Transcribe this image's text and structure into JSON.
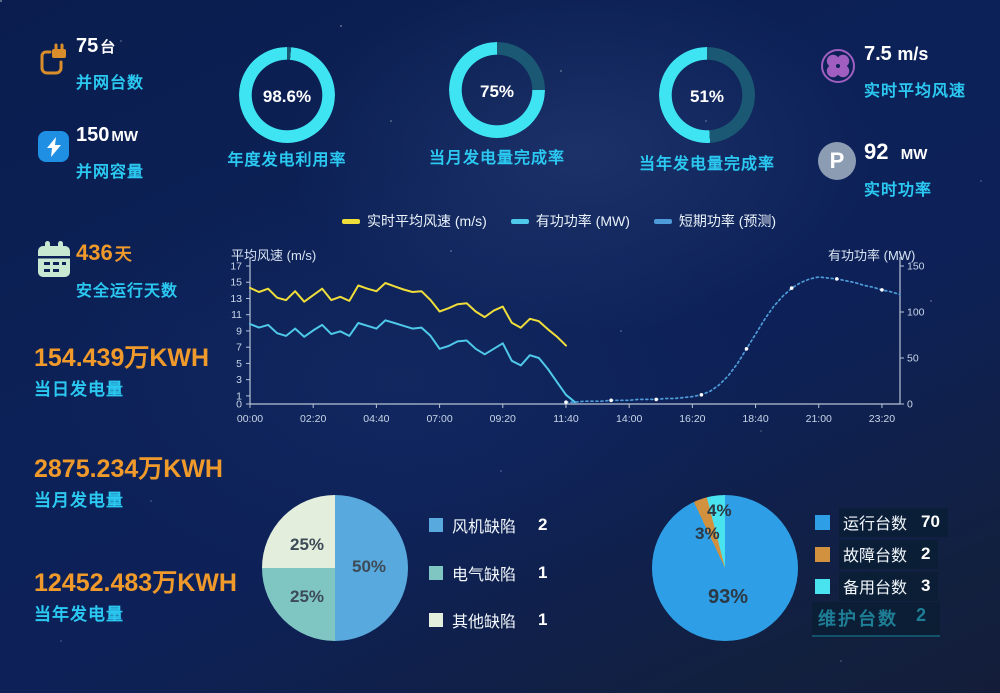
{
  "colors": {
    "accent_cyan": "#2BC9F1",
    "accent_orange": "#F09A2B",
    "donut_cyan": "#3EE4F2",
    "donut_track": "#1B5873",
    "axis": "#B8C4D6"
  },
  "stats_left": [
    {
      "value": "75",
      "unit": "台",
      "label": "并网台数",
      "icon": "plug-icon"
    },
    {
      "value": "150",
      "unit": "MW",
      "label": "并网容量",
      "icon": "lightning-icon"
    },
    {
      "value": "436",
      "unit": "天",
      "label": "安全运行天数",
      "icon": "calendar-icon"
    },
    {
      "value": "154.439",
      "unit": "万KWH",
      "label": "当日发电量"
    },
    {
      "value": "2875.234",
      "unit": "万KWH",
      "label": "当月发电量"
    },
    {
      "value": "12452.483",
      "unit": "万KWH",
      "label": "当年发电量"
    }
  ],
  "donuts": [
    {
      "percent_label": "98.6%",
      "value": 98.6,
      "label": "年度发电利用率"
    },
    {
      "percent_label": "75%",
      "value": 75,
      "label": "当月发电量完成率"
    },
    {
      "percent_label": "51%",
      "value": 51,
      "label": "当年发电量完成率"
    }
  ],
  "stats_right": [
    {
      "value": "7.5",
      "unit": "m/s",
      "label": "实时平均风速",
      "icon": "fan-icon"
    },
    {
      "value": "92",
      "unit": "MW",
      "label": "实时功率",
      "icon": "power-p-icon"
    }
  ],
  "chart_data": [
    {
      "type": "line",
      "legend": [
        {
          "label": "实时平均风速 (m/s)",
          "color": "#EFDD3A",
          "style": "solid"
        },
        {
          "label": "有功功率 (MW)",
          "color": "#4FC9E9",
          "style": "solid"
        },
        {
          "label": "短期功率 (预测)",
          "color": "#4D9BD8",
          "style": "dotted"
        }
      ],
      "left_axis": {
        "title": "平均风速 (m/s)",
        "ticks": [
          0,
          1,
          3,
          5,
          7,
          9,
          11,
          13,
          15,
          17
        ],
        "range": [
          0,
          17
        ]
      },
      "right_axis": {
        "title": "有功功率 (MW)",
        "ticks": [
          0,
          50,
          100,
          150
        ],
        "range": [
          0,
          150
        ]
      },
      "x_axis": {
        "labels": [
          "00:00",
          "02:20",
          "04:40",
          "07:00",
          "09:20",
          "11:40",
          "14:00",
          "16:20",
          "18:40",
          "21:00",
          "23:20"
        ],
        "label_step_minutes": 140,
        "range_minutes": [
          0,
          1440
        ]
      },
      "series": [
        {
          "name": "实时平均风速 (m/s)",
          "axis": "left",
          "style": "solid",
          "color": "#EFDD3A",
          "start_minute": 0,
          "step_minute": 20,
          "values": [
            14.3,
            13.8,
            14.2,
            13.1,
            12.8,
            13.9,
            12.6,
            13.4,
            14.2,
            12.8,
            13.2,
            12.7,
            14.6,
            14.2,
            13.9,
            14.9,
            14.5,
            14.1,
            13.8,
            13.9,
            12.8,
            11.4,
            11.8,
            12.3,
            12.4,
            11.4,
            10.7,
            11.5,
            12.0,
            10.0,
            9.4,
            10.5,
            10.2,
            9.2,
            8.3,
            7.2
          ]
        },
        {
          "name": "有功功率 (MW)",
          "axis": "right",
          "style": "solid",
          "color": "#4FC9E9",
          "start_minute": 0,
          "step_minute": 20,
          "values": [
            87,
            83,
            86,
            77,
            74,
            82,
            73,
            80,
            86,
            76,
            79,
            74,
            88,
            85,
            82,
            91,
            88,
            85,
            82,
            83,
            74,
            60,
            63,
            68,
            69,
            60,
            54,
            60,
            66,
            47,
            42,
            53,
            50,
            38,
            24,
            10,
            2
          ]
        },
        {
          "name": "短期功率 (预测)",
          "axis": "right",
          "style": "dotted",
          "color": "#4D9BD8",
          "start_minute": 700,
          "step_minute": 20,
          "values": [
            2,
            2,
            3,
            3,
            3,
            4,
            4,
            4,
            5,
            5,
            5,
            6,
            6,
            7,
            8,
            10,
            14,
            21,
            31,
            44,
            60,
            76,
            92,
            106,
            117,
            126,
            132,
            136,
            138,
            137,
            136,
            134,
            132,
            129,
            127,
            124,
            122,
            119
          ]
        }
      ]
    },
    {
      "type": "pie",
      "name": "缺陷统计",
      "slices": [
        {
          "label": "风机缺陷",
          "count": 2,
          "percent": 50,
          "pct_label": "50%",
          "color": "#58A9DD"
        },
        {
          "label": "电气缺陷",
          "count": 1,
          "percent": 25,
          "pct_label": "25%",
          "color": "#7FC5C2"
        },
        {
          "label": "其他缺陷",
          "count": 1,
          "percent": 25,
          "pct_label": "25%",
          "color": "#E3EEDC"
        }
      ]
    },
    {
      "type": "pie",
      "name": "台数统计",
      "slices": [
        {
          "label": "运行台数",
          "count": 70,
          "percent": 93,
          "pct_label": "93%",
          "color": "#2E9FE6"
        },
        {
          "label": "故障台数",
          "count": 2,
          "percent": 3,
          "pct_label": "3%",
          "color": "#D2913F"
        },
        {
          "label": "备用台数",
          "count": 3,
          "percent": 4,
          "pct_label": "4%",
          "color": "#49E3EF"
        }
      ],
      "extra_legend": {
        "label": "维护台数",
        "count": 2
      }
    }
  ]
}
